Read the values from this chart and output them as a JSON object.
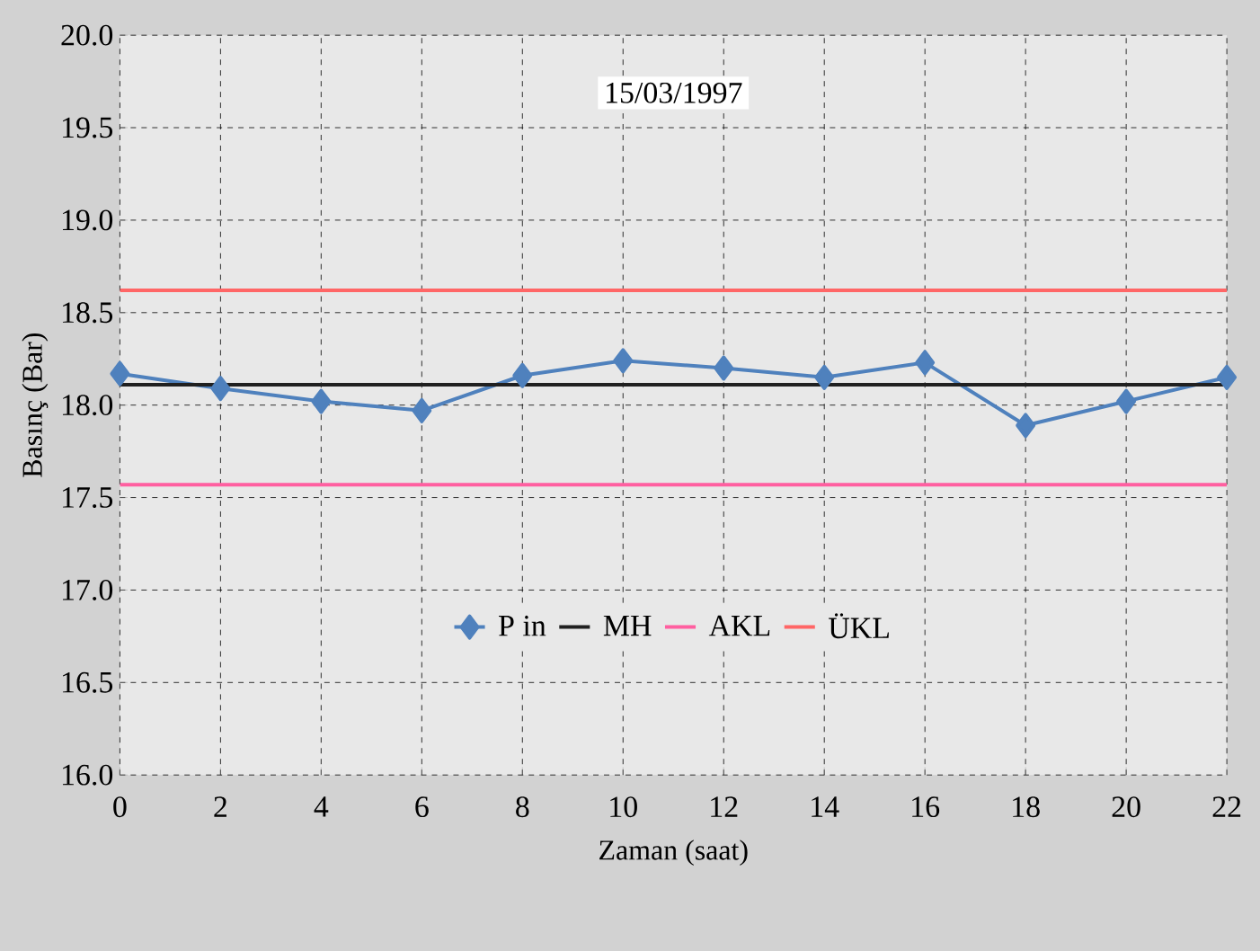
{
  "chart_data": {
    "type": "line",
    "title": "15/03/1997",
    "xlabel": "Zaman (saat)",
    "ylabel": "Basınç (Bar)",
    "x": [
      0,
      2,
      4,
      6,
      8,
      10,
      12,
      14,
      16,
      18,
      20,
      22
    ],
    "series": [
      {
        "name": "P in",
        "color": "#4f81bd",
        "values": [
          18.17,
          18.09,
          18.02,
          17.97,
          18.16,
          18.24,
          18.2,
          18.15,
          18.23,
          17.89,
          18.02,
          18.15
        ]
      }
    ],
    "ref_lines": [
      {
        "axis": "y",
        "value": 18.11,
        "label": "MH",
        "color": "#202020"
      },
      {
        "axis": "y",
        "value": 17.57,
        "label": "AKL",
        "color": "#ff5fa0"
      },
      {
        "axis": "y",
        "value": 18.62,
        "label": "ÜKL",
        "color": "#ff6666"
      }
    ],
    "xlim": [
      0,
      22
    ],
    "xticks": [
      0,
      2,
      4,
      6,
      8,
      10,
      12,
      14,
      16,
      18,
      20,
      22
    ],
    "ylim": [
      16,
      20
    ],
    "yticks": [
      {
        "value": 16,
        "label": "16.0"
      },
      {
        "value": 16.5,
        "label": "16.5"
      },
      {
        "value": 17,
        "label": "17.0"
      },
      {
        "value": 17.5,
        "label": "17.5"
      },
      {
        "value": 18,
        "label": "18.0"
      },
      {
        "value": 18.5,
        "label": "18.5"
      },
      {
        "value": 19,
        "label": "19.0"
      },
      {
        "value": 19.5,
        "label": "19.5"
      },
      {
        "value": 20,
        "label": "20.0"
      }
    ],
    "grid": true,
    "legend": "bottom",
    "marker": "diamond",
    "line_style": "solid"
  }
}
